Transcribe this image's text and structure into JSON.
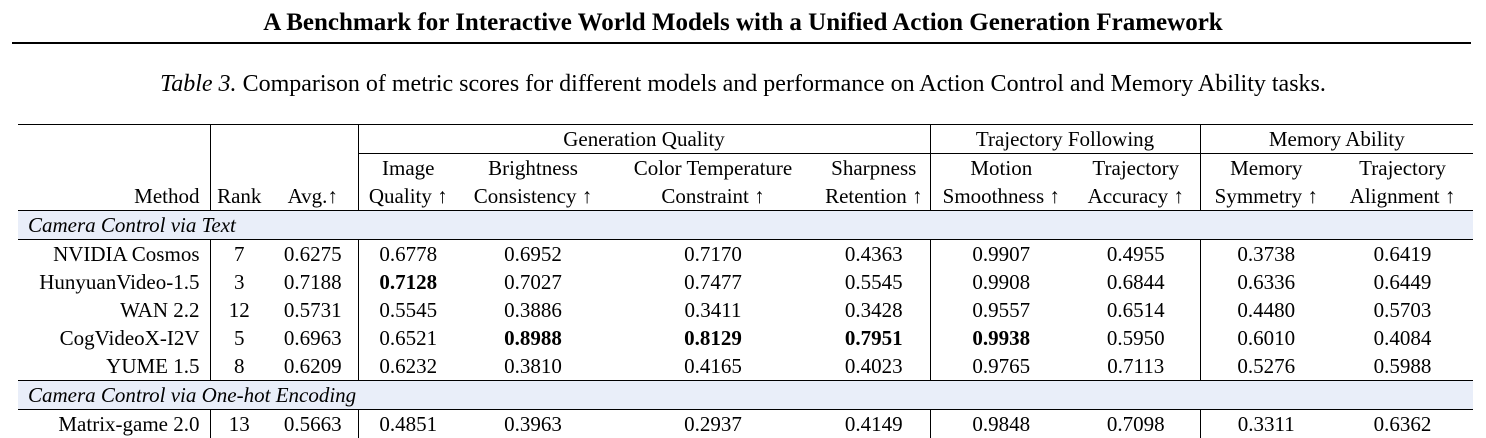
{
  "running_title": "A Benchmark for Interactive World Models with a Unified Action Generation Framework",
  "caption": {
    "lead": "Table 3.",
    "text": "Comparison of metric scores for different models and performance on Action Control and Memory Ability tasks."
  },
  "table": {
    "groups": {
      "generation_quality": "Generation Quality",
      "trajectory_following": "Trajectory Following",
      "memory_ability": "Memory Ability"
    },
    "columns": {
      "method": "Method",
      "rank": "Rank",
      "avg": "Avg.↑",
      "image_quality_1": "Image",
      "image_quality_2": "Quality ↑",
      "brightness_1": "Brightness",
      "brightness_2": "Consistency ↑",
      "color_temp_1": "Color Temperature",
      "color_temp_2": "Constraint ↑",
      "sharpness_1": "Sharpness",
      "sharpness_2": "Retention ↑",
      "motion_1": "Motion",
      "motion_2": "Smoothness ↑",
      "traj_acc_1": "Trajectory",
      "traj_acc_2": "Accuracy ↑",
      "mem_sym_1": "Memory",
      "mem_sym_2": "Symmetry ↑",
      "traj_align_1": "Trajectory",
      "traj_align_2": "Alignment ↑"
    },
    "sections": [
      {
        "label": "Camera Control via Text",
        "rows": [
          [
            "NVIDIA Cosmos",
            "7",
            "0.6275",
            "0.6778",
            "0.6952",
            "0.7170",
            "0.4363",
            "0.9907",
            "0.4955",
            "0.3738",
            "0.6419"
          ],
          [
            "HunyuanVideo-1.5",
            "3",
            "0.7188",
            "0.7128",
            "0.7027",
            "0.7477",
            "0.5545",
            "0.9908",
            "0.6844",
            "0.6336",
            "0.6449"
          ],
          [
            "WAN 2.2",
            "12",
            "0.5731",
            "0.5545",
            "0.3886",
            "0.3411",
            "0.3428",
            "0.9557",
            "0.6514",
            "0.4480",
            "0.5703"
          ],
          [
            "CogVideoX-I2V",
            "5",
            "0.6963",
            "0.6521",
            "0.8988",
            "0.8129",
            "0.7951",
            "0.9938",
            "0.5950",
            "0.6010",
            "0.4084"
          ],
          [
            "YUME 1.5",
            "8",
            "0.6209",
            "0.6232",
            "0.3810",
            "0.4165",
            "0.4023",
            "0.9765",
            "0.7113",
            "0.5276",
            "0.5988"
          ]
        ]
      },
      {
        "label": "Camera Control via One-hot Encoding",
        "rows": [
          [
            "Matrix-game 2.0",
            "13",
            "0.5663",
            "0.4851",
            "0.3963",
            "0.2937",
            "0.4149",
            "0.9848",
            "0.7098",
            "0.3311",
            "0.6362"
          ]
        ]
      }
    ]
  }
}
